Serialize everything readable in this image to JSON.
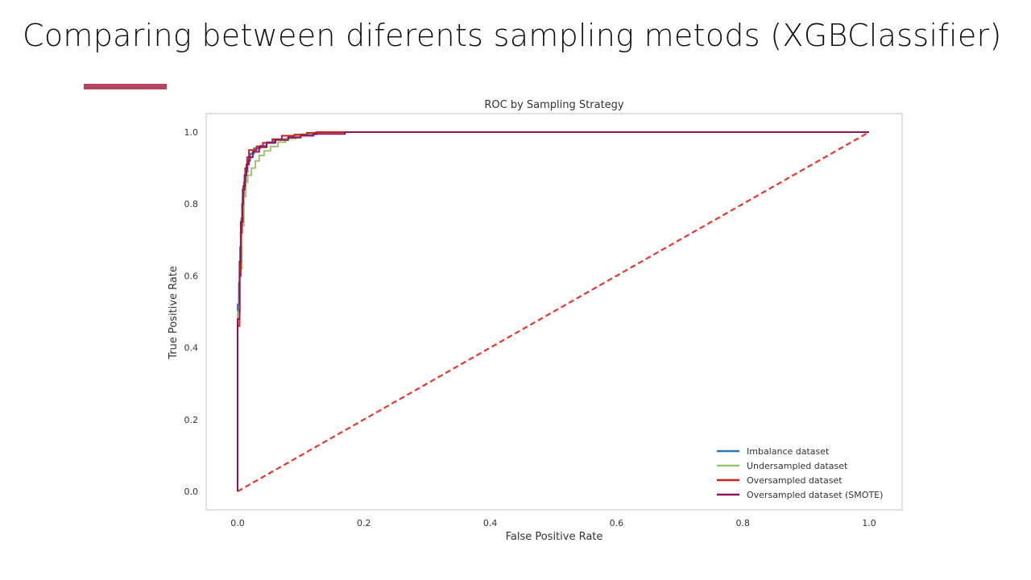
{
  "slide": {
    "title": "Comparing between diferents sampling metods (XGBClassifier)",
    "accent_color": "#b5455f"
  },
  "chart_data": {
    "type": "line",
    "title": "ROC by Sampling Strategy",
    "xlabel": "False Positive Rate",
    "ylabel": "True Positive Rate",
    "xlim": [
      0.0,
      1.0
    ],
    "ylim": [
      0.0,
      1.0
    ],
    "xticks": [
      "0.0",
      "0.2",
      "0.4",
      "0.6",
      "0.8",
      "1.0"
    ],
    "yticks": [
      "0.0",
      "0.2",
      "0.4",
      "0.6",
      "0.8",
      "1.0"
    ],
    "grid": false,
    "legend_position": "bottom-right",
    "baseline": {
      "style": "dashed",
      "color": "#e8362f",
      "points": [
        [
          0.0,
          0.0
        ],
        [
          1.0,
          1.0
        ]
      ]
    },
    "series": [
      {
        "name": "Imbalance dataset",
        "color": "#2c7bb0",
        "points": [
          [
            0,
            0
          ],
          [
            0,
            0.52
          ],
          [
            0.002,
            0.52
          ],
          [
            0.002,
            0.58
          ],
          [
            0.004,
            0.58
          ],
          [
            0.004,
            0.68
          ],
          [
            0.006,
            0.68
          ],
          [
            0.006,
            0.76
          ],
          [
            0.008,
            0.76
          ],
          [
            0.008,
            0.82
          ],
          [
            0.01,
            0.82
          ],
          [
            0.01,
            0.86
          ],
          [
            0.013,
            0.86
          ],
          [
            0.013,
            0.89
          ],
          [
            0.016,
            0.89
          ],
          [
            0.016,
            0.92
          ],
          [
            0.02,
            0.92
          ],
          [
            0.02,
            0.94
          ],
          [
            0.026,
            0.94
          ],
          [
            0.026,
            0.955
          ],
          [
            0.036,
            0.955
          ],
          [
            0.036,
            0.962
          ],
          [
            0.046,
            0.962
          ],
          [
            0.046,
            0.972
          ],
          [
            0.058,
            0.972
          ],
          [
            0.058,
            0.98
          ],
          [
            0.08,
            0.98
          ],
          [
            0.08,
            0.988
          ],
          [
            0.1,
            0.988
          ],
          [
            0.1,
            0.994
          ],
          [
            0.125,
            0.994
          ],
          [
            0.125,
            1.0
          ],
          [
            1.0,
            1.0
          ]
        ]
      },
      {
        "name": "Undersampled dataset",
        "color": "#9cc56e",
        "points": [
          [
            0,
            0
          ],
          [
            0,
            0.5
          ],
          [
            0.004,
            0.5
          ],
          [
            0.004,
            0.62
          ],
          [
            0.007,
            0.62
          ],
          [
            0.007,
            0.74
          ],
          [
            0.01,
            0.74
          ],
          [
            0.01,
            0.82
          ],
          [
            0.013,
            0.82
          ],
          [
            0.013,
            0.86
          ],
          [
            0.016,
            0.86
          ],
          [
            0.016,
            0.88
          ],
          [
            0.022,
            0.88
          ],
          [
            0.022,
            0.9
          ],
          [
            0.028,
            0.9
          ],
          [
            0.028,
            0.92
          ],
          [
            0.034,
            0.92
          ],
          [
            0.034,
            0.935
          ],
          [
            0.042,
            0.935
          ],
          [
            0.042,
            0.948
          ],
          [
            0.052,
            0.948
          ],
          [
            0.052,
            0.96
          ],
          [
            0.064,
            0.96
          ],
          [
            0.064,
            0.972
          ],
          [
            0.076,
            0.972
          ],
          [
            0.076,
            0.982
          ],
          [
            0.092,
            0.982
          ],
          [
            0.092,
            0.99
          ],
          [
            0.11,
            0.99
          ],
          [
            0.11,
            0.996
          ],
          [
            0.13,
            0.996
          ],
          [
            0.13,
            1.0
          ],
          [
            1.0,
            1.0
          ]
        ]
      },
      {
        "name": "Oversampled dataset",
        "color": "#c8231e",
        "points": [
          [
            0,
            0
          ],
          [
            0,
            0.46
          ],
          [
            0.003,
            0.46
          ],
          [
            0.003,
            0.6
          ],
          [
            0.005,
            0.6
          ],
          [
            0.005,
            0.72
          ],
          [
            0.007,
            0.72
          ],
          [
            0.007,
            0.8
          ],
          [
            0.009,
            0.8
          ],
          [
            0.009,
            0.85
          ],
          [
            0.012,
            0.85
          ],
          [
            0.012,
            0.9
          ],
          [
            0.015,
            0.9
          ],
          [
            0.015,
            0.93
          ],
          [
            0.018,
            0.93
          ],
          [
            0.018,
            0.95
          ],
          [
            0.03,
            0.95
          ],
          [
            0.03,
            0.96
          ],
          [
            0.04,
            0.96
          ],
          [
            0.04,
            0.97
          ],
          [
            0.055,
            0.97
          ],
          [
            0.055,
            0.98
          ],
          [
            0.07,
            0.98
          ],
          [
            0.07,
            0.99
          ],
          [
            0.09,
            0.99
          ],
          [
            0.09,
            0.993
          ],
          [
            0.11,
            0.993
          ],
          [
            0.11,
            0.998
          ],
          [
            0.125,
            0.998
          ],
          [
            0.125,
            1.0
          ],
          [
            1.0,
            1.0
          ]
        ]
      },
      {
        "name": "Oversampled dataset (SMOTE)",
        "color": "#8e1560",
        "points": [
          [
            0,
            0
          ],
          [
            0,
            0.48
          ],
          [
            0.003,
            0.48
          ],
          [
            0.003,
            0.64
          ],
          [
            0.005,
            0.64
          ],
          [
            0.005,
            0.75
          ],
          [
            0.008,
            0.75
          ],
          [
            0.008,
            0.84
          ],
          [
            0.011,
            0.84
          ],
          [
            0.011,
            0.88
          ],
          [
            0.014,
            0.88
          ],
          [
            0.014,
            0.91
          ],
          [
            0.018,
            0.91
          ],
          [
            0.018,
            0.93
          ],
          [
            0.024,
            0.93
          ],
          [
            0.024,
            0.945
          ],
          [
            0.034,
            0.945
          ],
          [
            0.034,
            0.958
          ],
          [
            0.046,
            0.958
          ],
          [
            0.046,
            0.97
          ],
          [
            0.06,
            0.97
          ],
          [
            0.06,
            0.978
          ],
          [
            0.08,
            0.978
          ],
          [
            0.08,
            0.985
          ],
          [
            0.1,
            0.985
          ],
          [
            0.1,
            0.99
          ],
          [
            0.12,
            0.99
          ],
          [
            0.12,
            0.995
          ],
          [
            0.17,
            0.995
          ],
          [
            0.17,
            1.0
          ],
          [
            1.0,
            1.0
          ]
        ]
      }
    ]
  }
}
